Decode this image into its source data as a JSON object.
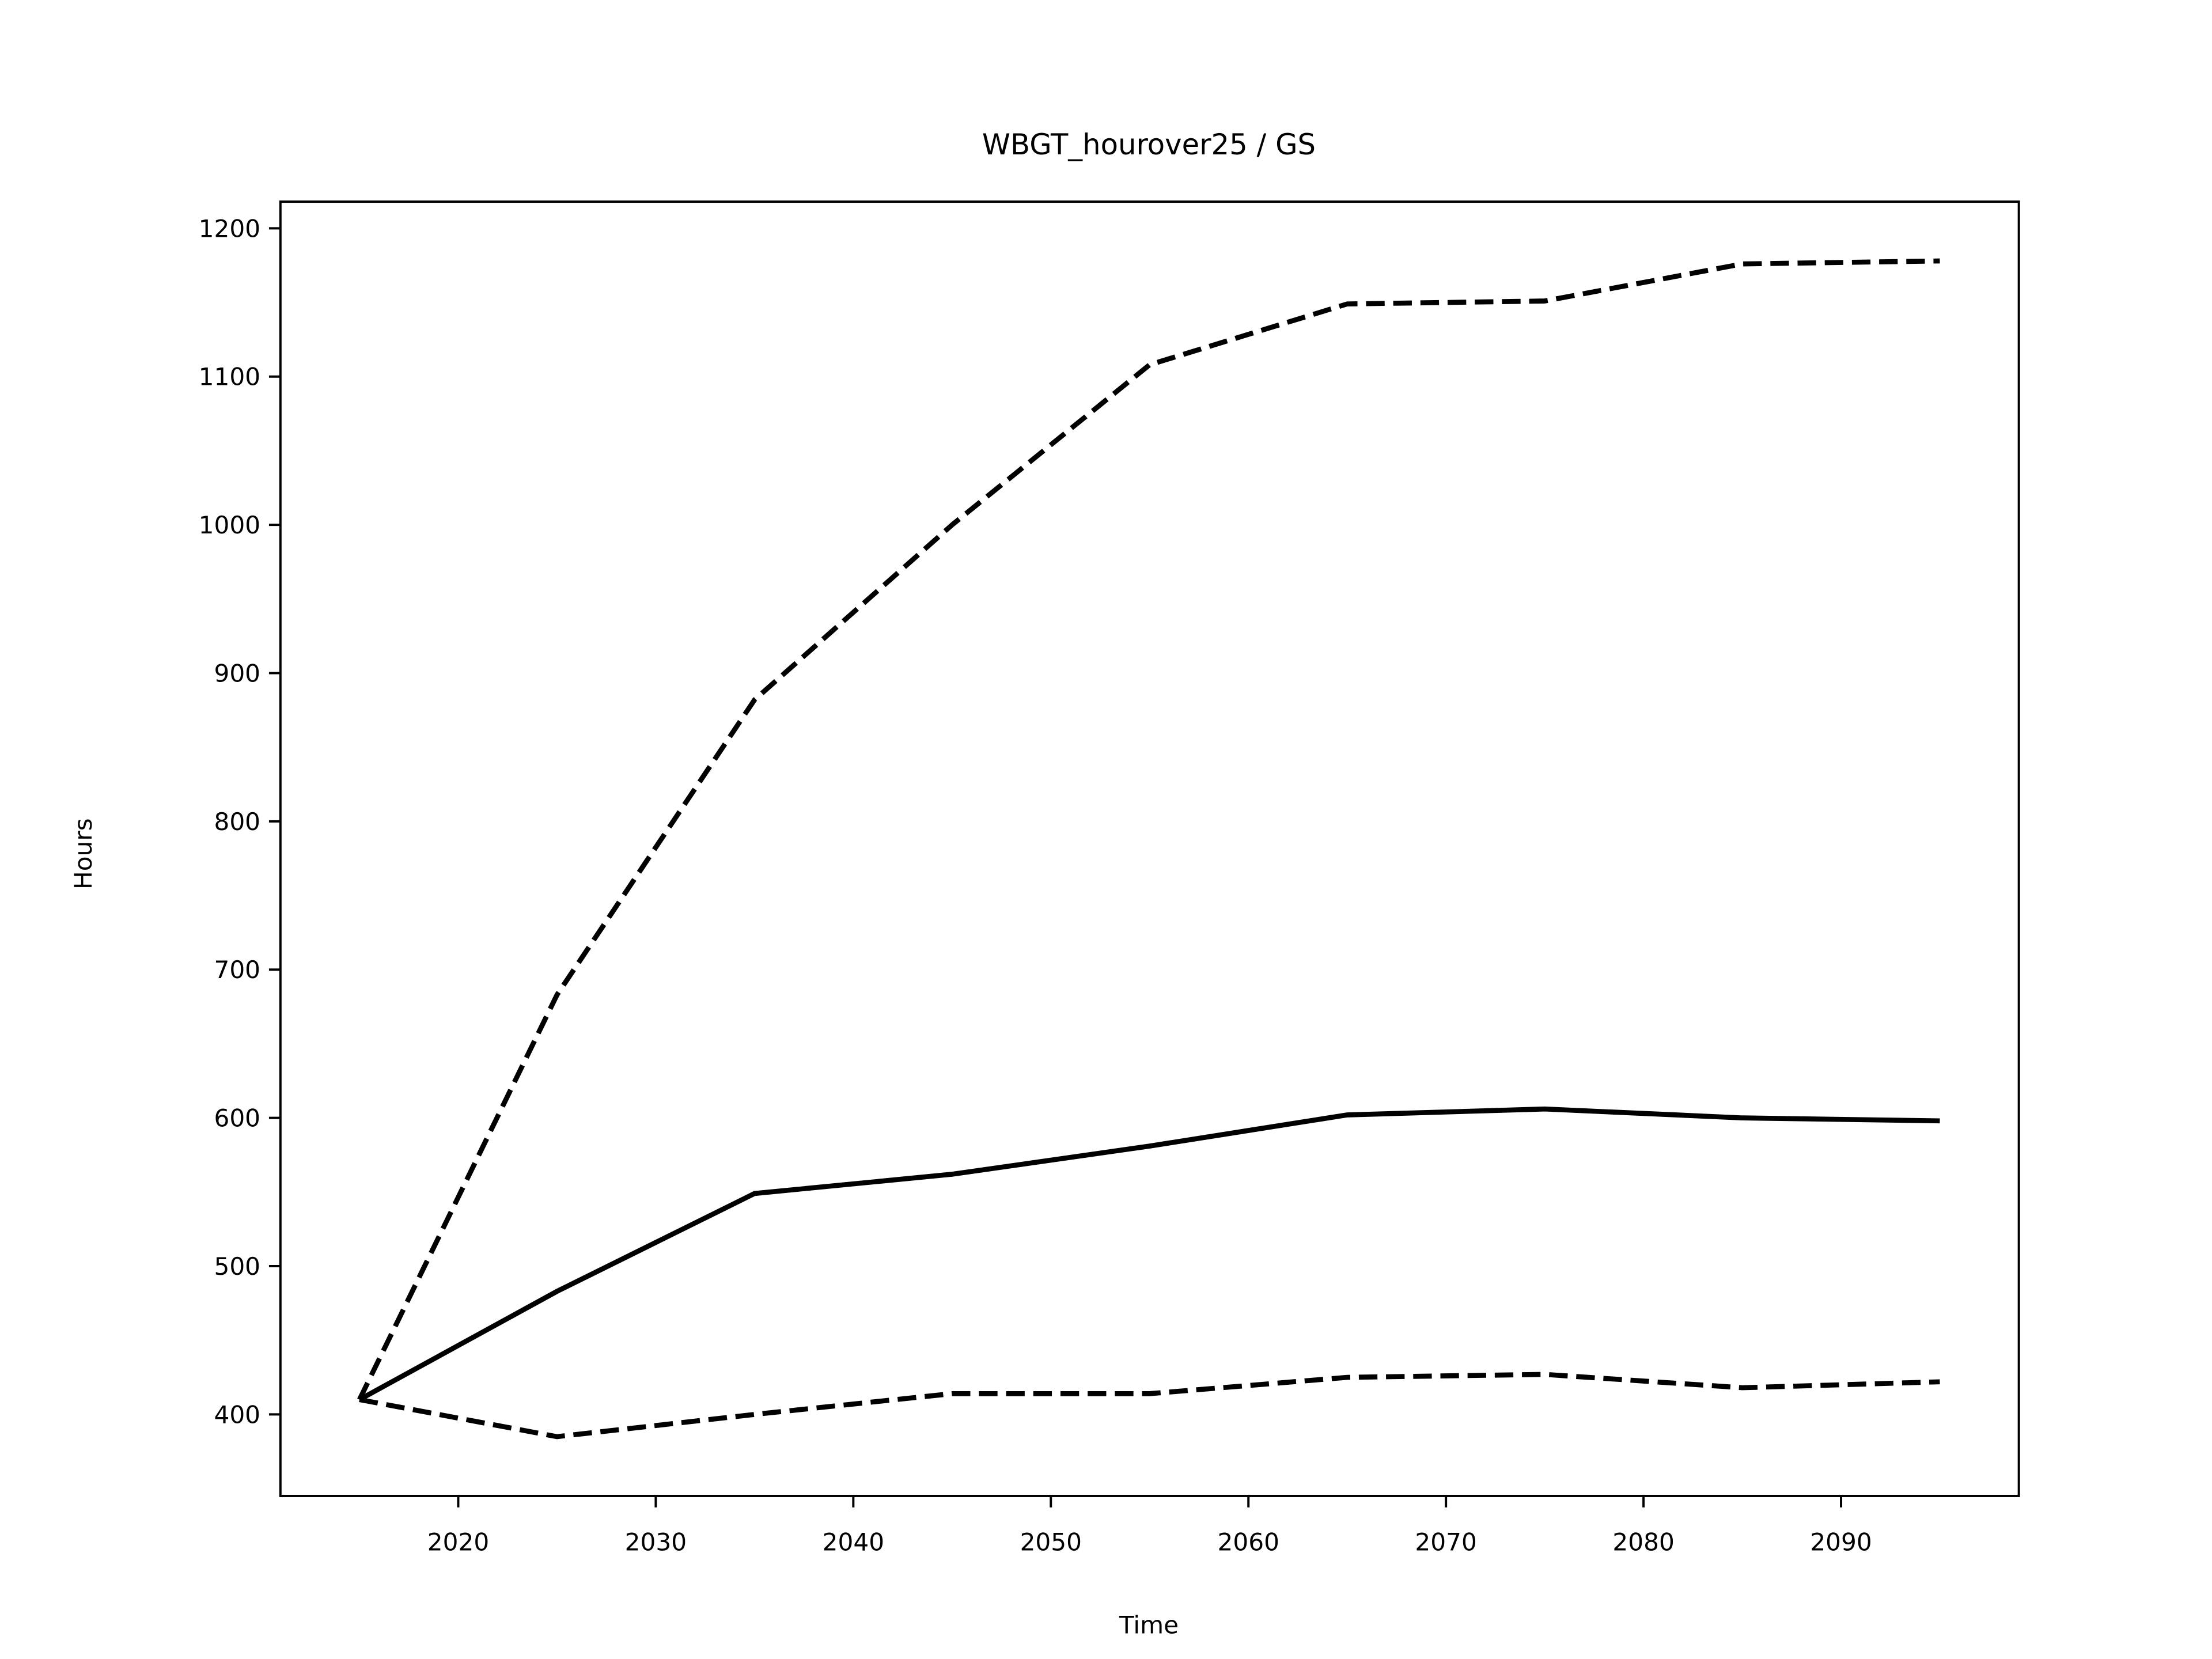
{
  "chart_data": {
    "type": "line",
    "title": "WBGT_hourover25 / GS",
    "xlabel": "Time",
    "ylabel": "Hours",
    "x": [
      2015,
      2025,
      2035,
      2045,
      2055,
      2065,
      2075,
      2085,
      2095
    ],
    "series": [
      {
        "color": "#000000",
        "linestyle": "solid",
        "values": [
          410,
          483,
          549,
          562,
          581,
          602,
          606,
          600,
          598
        ]
      },
      {
        "color": "#000000",
        "linestyle": "dashed",
        "values": [
          410,
          683,
          882,
          1000,
          1108,
          1149,
          1151,
          1176,
          1178
        ]
      },
      {
        "color": "#000000",
        "linestyle": "dashed",
        "values": [
          410,
          385,
          400,
          414,
          414,
          425,
          427,
          418,
          422
        ]
      }
    ],
    "xlim": [
      2011,
      2099
    ],
    "ylim": [
      345,
      1218
    ],
    "xticks": [
      2020,
      2030,
      2040,
      2050,
      2060,
      2070,
      2080,
      2090
    ],
    "yticks": [
      400,
      500,
      600,
      700,
      800,
      900,
      1000,
      1100,
      1200
    ]
  }
}
